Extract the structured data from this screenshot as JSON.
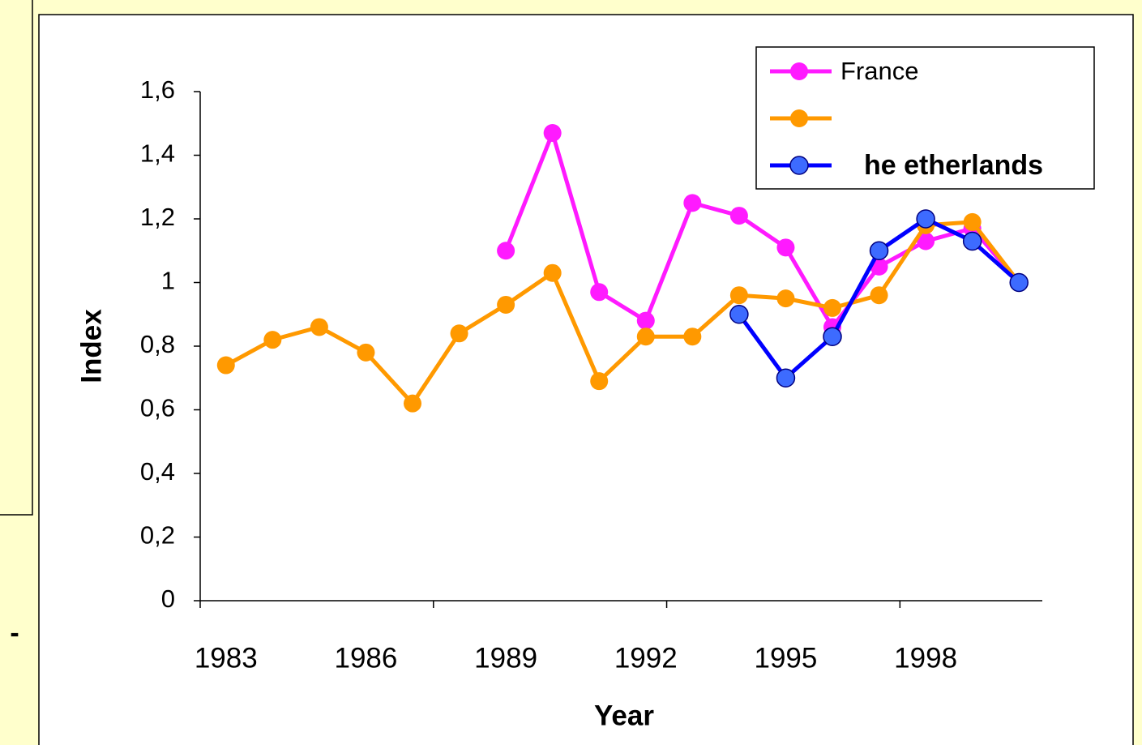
{
  "fragment": "-",
  "chart_data": {
    "type": "line",
    "x_label": "Year",
    "y_label": "Index",
    "categories": [
      "1983",
      null,
      null,
      "1986",
      null,
      null,
      "1989",
      null,
      null,
      "1992",
      null,
      null,
      "1995",
      null,
      null,
      "1998",
      null,
      null
    ],
    "x_tick_interval": 5,
    "ylim": [
      0,
      1.6
    ],
    "yticks": [
      0,
      {
        "value": 0.2,
        "label": "0,2"
      },
      {
        "value": 0.4,
        "label": "0,4"
      },
      {
        "value": 0.6,
        "label": "0,6"
      },
      {
        "value": 0.8,
        "label": "0,8"
      },
      1,
      {
        "value": 1.2,
        "label": "1,2"
      },
      {
        "value": 1.4,
        "label": "1,4"
      },
      {
        "value": 1.6,
        "label": "1,6"
      }
    ],
    "legend": "upper right",
    "series": [
      {
        "name": "France",
        "color": "#ff1aff",
        "marker_color": "#ff1aff",
        "values": [
          null,
          null,
          null,
          null,
          null,
          null,
          1.1,
          1.47,
          0.97,
          0.88,
          1.25,
          1.21,
          1.11,
          0.86,
          1.05,
          1.13,
          1.17,
          1.0
        ]
      },
      {
        "name": null,
        "color": "#ff9900",
        "marker_color": "#ff9900",
        "values": [
          0.74,
          0.82,
          0.86,
          0.78,
          0.62,
          0.84,
          0.93,
          1.03,
          0.69,
          0.83,
          0.83,
          0.96,
          0.95,
          0.92,
          0.96,
          1.18,
          1.19,
          1.0
        ]
      },
      {
        "name": "he etherlands",
        "color": "#0000ff",
        "marker_color": "#3d6bff",
        "values": [
          null,
          null,
          null,
          null,
          null,
          null,
          null,
          null,
          null,
          null,
          null,
          0.9,
          0.7,
          0.83,
          1.1,
          1.2,
          1.13,
          1.0
        ]
      }
    ]
  }
}
